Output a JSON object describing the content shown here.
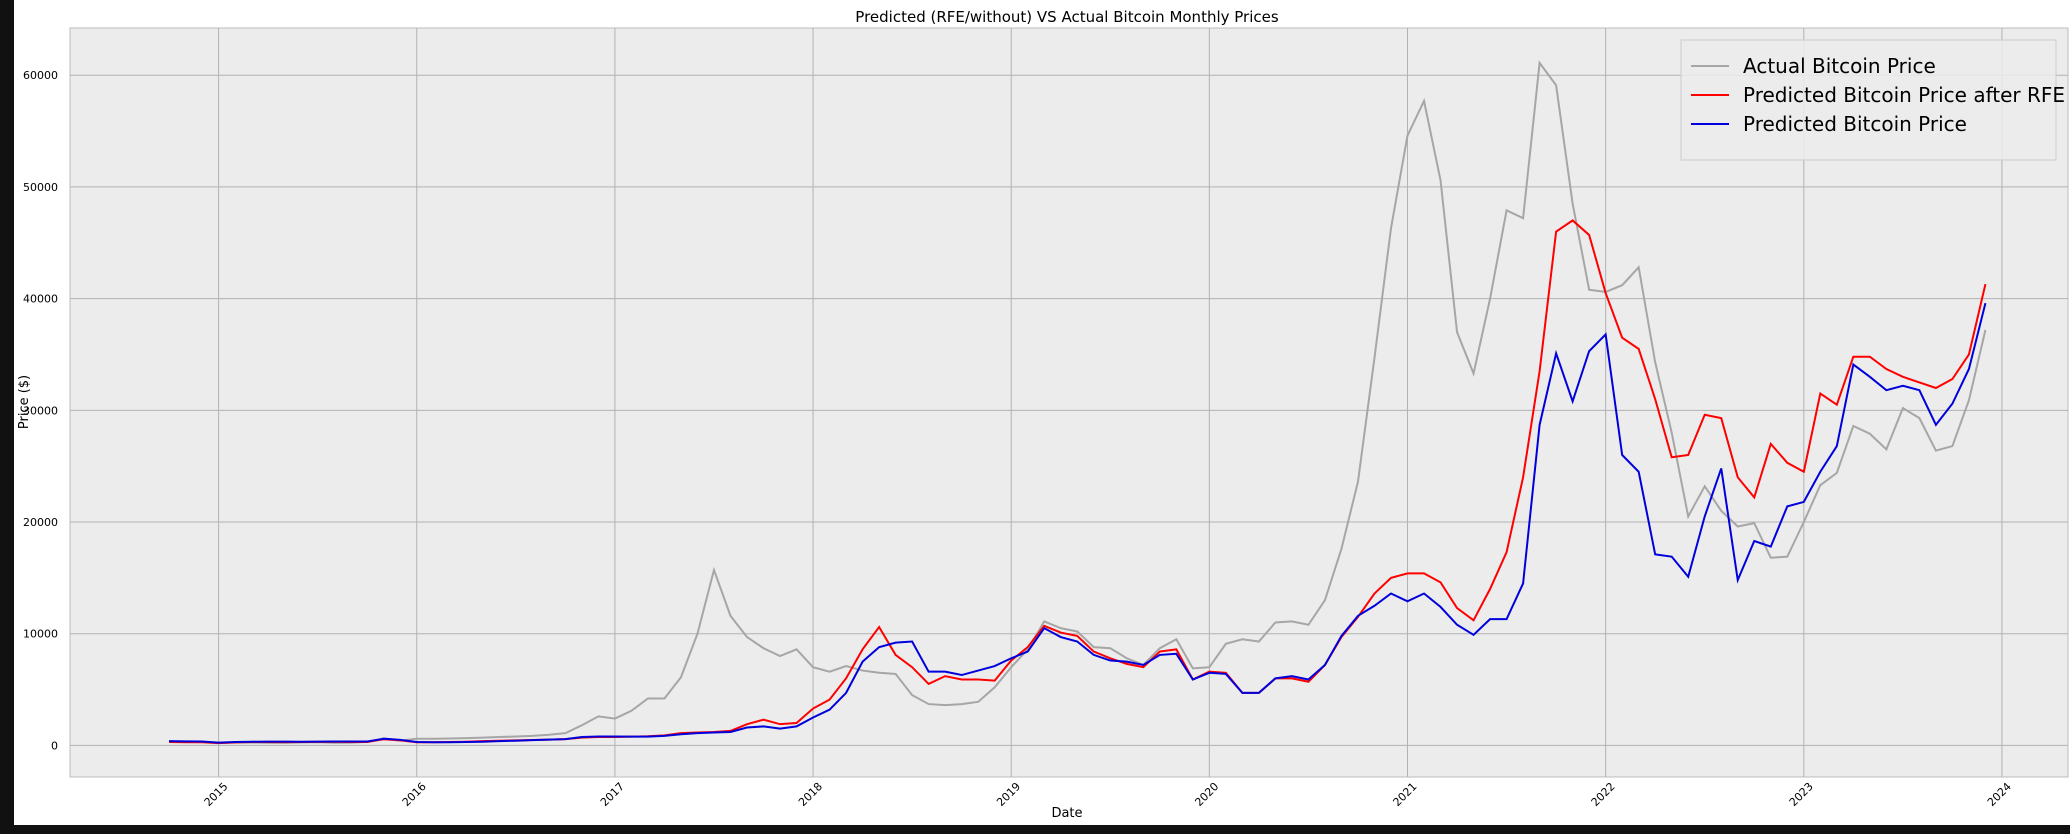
{
  "chart_data": {
    "type": "line",
    "title": "Predicted (RFE/without) VS Actual Bitcoin Monthly Prices",
    "xlabel": "Date",
    "ylabel": "Price ($)",
    "x": [
      "2014-10",
      "2014-11",
      "2014-12",
      "2015-01",
      "2015-02",
      "2015-03",
      "2015-04",
      "2015-05",
      "2015-06",
      "2015-07",
      "2015-08",
      "2015-09",
      "2015-10",
      "2015-11",
      "2015-12",
      "2016-01",
      "2016-02",
      "2016-03",
      "2016-04",
      "2016-05",
      "2016-06",
      "2016-07",
      "2016-08",
      "2016-09",
      "2016-10",
      "2016-11",
      "2016-12",
      "2017-01",
      "2017-02",
      "2017-03",
      "2017-04",
      "2017-05",
      "2017-06",
      "2017-07",
      "2017-08",
      "2017-09",
      "2017-10",
      "2017-11",
      "2017-12",
      "2018-01",
      "2018-02",
      "2018-03",
      "2018-04",
      "2018-05",
      "2018-06",
      "2018-07",
      "2018-08",
      "2018-09",
      "2018-10",
      "2018-11",
      "2018-12",
      "2019-01",
      "2019-02",
      "2019-03",
      "2019-04",
      "2019-05",
      "2019-06",
      "2019-07",
      "2019-08",
      "2019-09",
      "2019-10",
      "2019-11",
      "2019-12",
      "2020-01",
      "2020-02",
      "2020-03",
      "2020-04",
      "2020-05",
      "2020-06",
      "2020-07",
      "2020-08",
      "2020-09",
      "2020-10",
      "2020-11",
      "2020-12",
      "2021-01",
      "2021-02",
      "2021-03",
      "2021-04",
      "2021-05",
      "2021-06",
      "2021-07",
      "2021-08",
      "2021-09",
      "2021-10",
      "2021-11",
      "2021-12",
      "2022-01",
      "2022-02",
      "2022-03",
      "2022-04",
      "2022-05",
      "2022-06",
      "2022-07",
      "2022-08",
      "2022-09",
      "2022-10",
      "2022-11",
      "2022-12",
      "2023-01",
      "2023-02",
      "2023-03",
      "2023-04",
      "2023-05",
      "2023-06",
      "2023-07",
      "2023-08",
      "2023-09",
      "2023-10",
      "2023-11",
      "2023-12"
    ],
    "series": [
      {
        "name": "Actual Bitcoin Price",
        "color": "#a6a6a6",
        "values": [
          350,
          350,
          320,
          220,
          250,
          250,
          230,
          230,
          260,
          280,
          230,
          240,
          310,
          600,
          430,
          600,
          600,
          620,
          650,
          700,
          750,
          800,
          850,
          950,
          1100,
          1800,
          2600,
          2400,
          3100,
          4200,
          4200,
          6100,
          10000,
          15700,
          11600,
          9700,
          8700,
          8000,
          8600,
          7000,
          6600,
          7100,
          6700,
          6500,
          6400,
          4500,
          3700,
          3600,
          3700,
          3900,
          5200,
          7000,
          8600,
          11100,
          10500,
          10200,
          8800,
          8700,
          7800,
          7200,
          8700,
          9500,
          6900,
          7000,
          9100,
          9500,
          9300,
          11000,
          11100,
          10800,
          13000,
          17600,
          23600,
          34700,
          46300,
          54600,
          57700,
          50600,
          37000,
          33300,
          40000,
          47900,
          47200,
          61100,
          59100,
          48500,
          40800,
          40600,
          41200,
          42800,
          34300,
          28000,
          20500,
          23200,
          21000,
          19600,
          19900,
          16800,
          16900,
          20000,
          23300,
          24400,
          28600,
          27900,
          26500,
          30200,
          29300,
          26400,
          26800,
          30900,
          37200
        ]
      },
      {
        "name": "Predicted Bitcoin Price after RFE",
        "color": "#ff0000",
        "values": [
          300,
          280,
          280,
          200,
          270,
          300,
          300,
          290,
          300,
          320,
          330,
          300,
          300,
          550,
          450,
          280,
          280,
          300,
          330,
          380,
          420,
          450,
          480,
          520,
          560,
          700,
          750,
          750,
          780,
          820,
          900,
          1100,
          1150,
          1200,
          1300,
          1900,
          2300,
          1900,
          2000,
          3300,
          4100,
          6000,
          8600,
          10600,
          8100,
          7000,
          5500,
          6200,
          5900,
          5900,
          5800,
          7600,
          8800,
          10700,
          10100,
          9800,
          8400,
          7800,
          7300,
          7000,
          8400,
          8600,
          5900,
          6600,
          6500,
          4700,
          4700,
          6000,
          6000,
          5700,
          7200,
          9700,
          11500,
          13600,
          15000,
          15400,
          15400,
          14600,
          12300,
          11200,
          14000,
          17300,
          24000,
          33500,
          46000,
          47000,
          45700,
          40500,
          36500,
          35500,
          31000,
          25800,
          26000,
          29600,
          29300,
          24000,
          22200,
          27000,
          25300,
          24500,
          31500,
          30500,
          34800,
          34800,
          33700,
          33000,
          32500,
          32000,
          32800,
          35000,
          41300
        ]
      },
      {
        "name": "Predicted Bitcoin Price",
        "color": "#0000dd",
        "values": [
          380,
          360,
          350,
          250,
          300,
          330,
          340,
          340,
          330,
          340,
          350,
          350,
          350,
          600,
          500,
          300,
          280,
          280,
          300,
          330,
          380,
          420,
          470,
          520,
          560,
          750,
          800,
          800,
          780,
          780,
          850,
          1000,
          1100,
          1150,
          1200,
          1600,
          1700,
          1500,
          1700,
          2500,
          3200,
          4700,
          7500,
          8800,
          9200,
          9300,
          6600,
          6600,
          6300,
          6700,
          7100,
          7800,
          8400,
          10500,
          9700,
          9300,
          8100,
          7600,
          7500,
          7200,
          8100,
          8200,
          5900,
          6500,
          6400,
          4700,
          4700,
          6000,
          6200,
          5900,
          7200,
          9800,
          11600,
          12500,
          13600,
          12900,
          13600,
          12400,
          10800,
          9900,
          11300,
          11300,
          14500,
          28700,
          35100,
          30800,
          35300,
          36800,
          26000,
          24500,
          17100,
          16900,
          15100,
          20500,
          24800,
          14800,
          18300,
          17800,
          21400,
          21800,
          24500,
          26800,
          34100,
          33000,
          31800,
          32200,
          31800,
          28700,
          30600,
          33700,
          39600
        ]
      }
    ],
    "xlim": [
      "2014-04",
      "2024-05"
    ],
    "xticks": [
      2015,
      2016,
      2017,
      2018,
      2019,
      2020,
      2021,
      2022,
      2023,
      2024
    ],
    "ylim": [
      -2830,
      64230
    ],
    "yticks": [
      0,
      10000,
      20000,
      30000,
      40000,
      50000,
      60000
    ],
    "grid": true,
    "legend": "upper right"
  }
}
